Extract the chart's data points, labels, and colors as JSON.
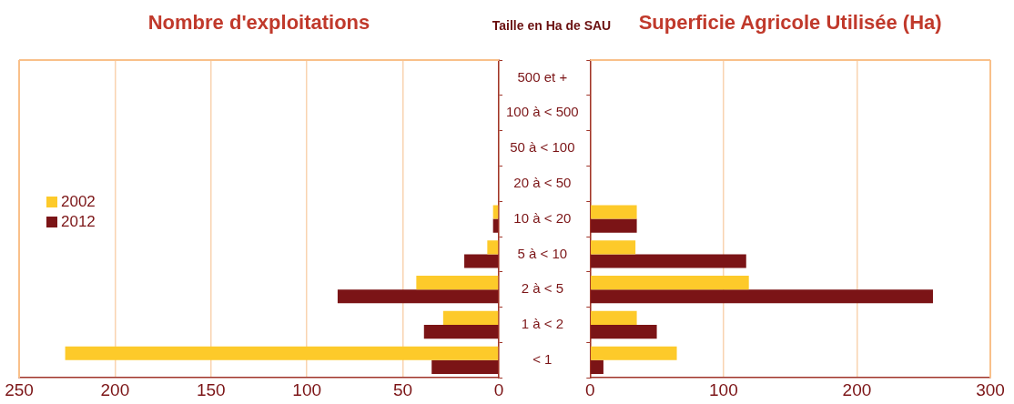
{
  "chart_data": [
    {
      "type": "bar",
      "orientation": "horizontal",
      "title": "Nombre d'exploitations",
      "ylabel": "Taille en Ha de SAU",
      "categories": [
        "500 et +",
        "100 à < 500",
        "50 à < 100",
        "20 à < 50",
        "10 à < 20",
        "5 à < 10",
        "2 à < 5",
        "1 à < 2",
        "< 1"
      ],
      "series": [
        {
          "name": "2002",
          "color": "#fdca2a",
          "values": [
            0,
            0,
            0,
            0,
            3,
            6,
            43,
            29,
            226
          ]
        },
        {
          "name": "2012",
          "color": "#7b1416",
          "values": [
            0,
            0,
            0,
            0,
            3,
            18,
            84,
            39,
            35
          ]
        }
      ],
      "xlim": [
        250,
        0
      ],
      "xticks": [
        250,
        200,
        150,
        100,
        50,
        0
      ],
      "grid": "x",
      "legend": "left"
    },
    {
      "type": "bar",
      "orientation": "horizontal",
      "title": "Superficie Agricole Utilisée (Ha)",
      "categories": [
        null,
        null,
        null,
        null,
        null,
        null,
        null,
        null,
        null
      ],
      "series": [
        {
          "name": "2002",
          "color": "#fdca2a",
          "values": [
            0,
            0,
            0,
            0,
            35,
            34,
            119,
            35,
            65
          ]
        },
        {
          "name": "2012",
          "color": "#7b1416",
          "values": [
            0,
            0,
            0,
            0,
            35,
            117,
            257,
            50,
            10
          ]
        }
      ],
      "xlim": [
        0,
        300
      ],
      "xticks": [
        0,
        100,
        200,
        300
      ],
      "grid": "x",
      "tick_labels": "x"
    }
  ]
}
